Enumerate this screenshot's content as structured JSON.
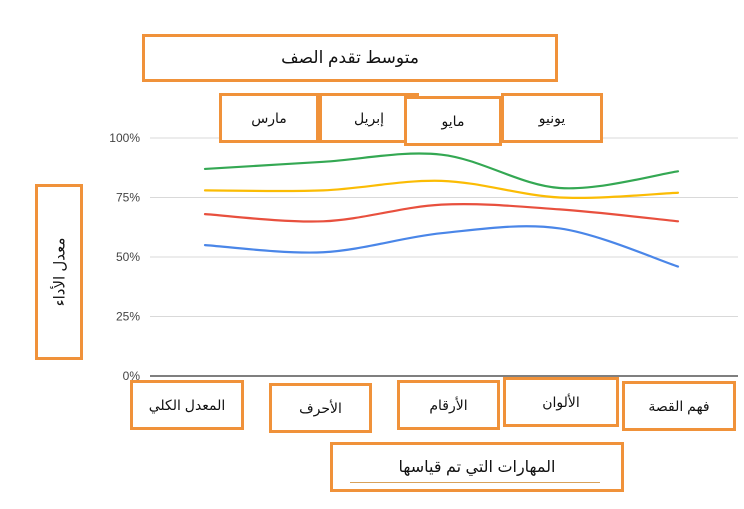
{
  "chart_data": {
    "type": "line",
    "title": "متوسط تقدم الصف",
    "xlabel": "المهارات التي تم قياسها",
    "ylabel": "معدل الأداء",
    "categories": [
      "المعدل الكلي",
      "الأحرف",
      "الأرقام",
      "الألوان",
      "فهم القصة"
    ],
    "y_ticks": [
      "0%",
      "25%",
      "50%",
      "75%",
      "100%"
    ],
    "ylim": [
      0,
      100
    ],
    "grid": true,
    "legend_position": "top",
    "series": [
      {
        "name": "مارس",
        "color": "#4a86e8",
        "values": [
          55,
          52,
          60,
          62,
          46
        ]
      },
      {
        "name": "إبريل",
        "color": "#e8503e",
        "values": [
          68,
          65,
          72,
          70,
          65
        ]
      },
      {
        "name": "مايو",
        "color": "#fbbc04",
        "values": [
          78,
          78,
          82,
          75,
          77
        ]
      },
      {
        "name": "يونيو",
        "color": "#34a853",
        "values": [
          87,
          90,
          93,
          79,
          86
        ]
      }
    ]
  },
  "colors": {
    "annotation_border": "#f0923a",
    "gridline": "#d9d9d9",
    "axis": "#333333"
  }
}
